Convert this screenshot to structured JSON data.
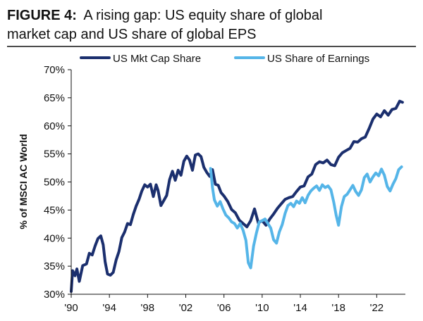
{
  "chart_data": {
    "type": "line",
    "title": "FIGURE 4: A rising gap: US equity share of global market cap and US share of global EPS",
    "title_bold": "FIGURE 4:",
    "title_line1": "A rising gap: US equity share of global",
    "title_line2": "market cap and US share of global EPS",
    "ylabel": "% of MSCI AC World",
    "xlabel": "",
    "ylim": [
      30,
      70
    ],
    "xlim": [
      1990,
      2025
    ],
    "y_ticks": [
      30,
      35,
      40,
      45,
      50,
      55,
      60,
      65,
      70
    ],
    "y_tick_labels": [
      "30%",
      "35%",
      "40%",
      "45%",
      "50%",
      "55%",
      "60%",
      "65%",
      "70%"
    ],
    "x_ticks": [
      1990,
      1994,
      1998,
      2002,
      2006,
      2010,
      2014,
      2018,
      2022
    ],
    "x_tick_labels": [
      "'90",
      "'94",
      "'98",
      "'02",
      "'06",
      "'10",
      "'14",
      "'18",
      "'22"
    ],
    "grid": false,
    "legend_position": "top",
    "series": [
      {
        "name": "US Mkt Cap Share",
        "color": "#1b2f6e",
        "points": [
          [
            1990.0,
            30.5
          ],
          [
            1990.15,
            34.2
          ],
          [
            1990.4,
            33.3
          ],
          [
            1990.6,
            34.5
          ],
          [
            1990.85,
            32.3
          ],
          [
            1991.2,
            35.1
          ],
          [
            1991.6,
            35.4
          ],
          [
            1991.9,
            37.3
          ],
          [
            1992.2,
            37.0
          ],
          [
            1992.5,
            38.6
          ],
          [
            1992.8,
            39.9
          ],
          [
            1993.1,
            40.4
          ],
          [
            1993.35,
            38.8
          ],
          [
            1993.55,
            35.8
          ],
          [
            1993.8,
            33.6
          ],
          [
            1994.1,
            33.4
          ],
          [
            1994.4,
            33.9
          ],
          [
            1994.7,
            36.1
          ],
          [
            1995.0,
            37.6
          ],
          [
            1995.3,
            40.1
          ],
          [
            1995.6,
            41.1
          ],
          [
            1995.9,
            42.6
          ],
          [
            1996.2,
            42.4
          ],
          [
            1996.5,
            44.2
          ],
          [
            1996.8,
            45.7
          ],
          [
            1997.1,
            46.9
          ],
          [
            1997.4,
            48.4
          ],
          [
            1997.7,
            49.5
          ],
          [
            1998.0,
            49.1
          ],
          [
            1998.3,
            49.6
          ],
          [
            1998.6,
            47.4
          ],
          [
            1998.9,
            49.5
          ],
          [
            1999.1,
            48.5
          ],
          [
            1999.4,
            45.8
          ],
          [
            1999.7,
            46.7
          ],
          [
            2000.0,
            47.6
          ],
          [
            2000.3,
            50.4
          ],
          [
            2000.6,
            51.9
          ],
          [
            2000.9,
            50.3
          ],
          [
            2001.2,
            52.1
          ],
          [
            2001.5,
            51.2
          ],
          [
            2001.8,
            53.7
          ],
          [
            2002.1,
            54.6
          ],
          [
            2002.4,
            53.9
          ],
          [
            2002.7,
            52.1
          ],
          [
            2003.0,
            54.8
          ],
          [
            2003.3,
            55.0
          ],
          [
            2003.6,
            54.5
          ],
          [
            2003.9,
            52.6
          ],
          [
            2004.2,
            51.7
          ],
          [
            2004.5,
            51.0
          ],
          [
            2004.8,
            52.2
          ],
          [
            2005.1,
            49.6
          ],
          [
            2005.4,
            49.4
          ],
          [
            2005.7,
            48.1
          ],
          [
            2006.0,
            47.5
          ],
          [
            2006.4,
            46.5
          ],
          [
            2006.8,
            45.1
          ],
          [
            2007.2,
            44.5
          ],
          [
            2007.6,
            43.2
          ],
          [
            2008.0,
            42.6
          ],
          [
            2008.4,
            42.0
          ],
          [
            2008.8,
            43.1
          ],
          [
            2009.2,
            45.2
          ],
          [
            2009.6,
            42.7
          ],
          [
            2010.0,
            43.1
          ],
          [
            2010.4,
            42.3
          ],
          [
            2010.8,
            43.4
          ],
          [
            2011.2,
            44.3
          ],
          [
            2011.6,
            45.3
          ],
          [
            2012.0,
            46.1
          ],
          [
            2012.4,
            46.9
          ],
          [
            2012.8,
            47.2
          ],
          [
            2013.2,
            47.4
          ],
          [
            2013.6,
            48.3
          ],
          [
            2014.0,
            49.1
          ],
          [
            2014.4,
            49.3
          ],
          [
            2014.8,
            50.9
          ],
          [
            2015.2,
            51.4
          ],
          [
            2015.6,
            53.1
          ],
          [
            2016.0,
            53.6
          ],
          [
            2016.4,
            53.4
          ],
          [
            2016.8,
            53.9
          ],
          [
            2017.2,
            53.1
          ],
          [
            2017.6,
            52.9
          ],
          [
            2018.0,
            54.4
          ],
          [
            2018.4,
            55.2
          ],
          [
            2018.8,
            55.6
          ],
          [
            2019.2,
            56.0
          ],
          [
            2019.6,
            57.2
          ],
          [
            2020.0,
            57.1
          ],
          [
            2020.4,
            57.7
          ],
          [
            2020.8,
            58.0
          ],
          [
            2021.2,
            59.5
          ],
          [
            2021.6,
            61.2
          ],
          [
            2022.0,
            62.1
          ],
          [
            2022.4,
            61.6
          ],
          [
            2022.8,
            62.7
          ],
          [
            2023.2,
            61.9
          ],
          [
            2023.6,
            62.9
          ],
          [
            2024.0,
            63.1
          ],
          [
            2024.4,
            64.4
          ],
          [
            2024.7,
            64.2
          ]
        ]
      },
      {
        "name": "US Share of Earnings",
        "color": "#55b5e8",
        "points": [
          [
            2004.6,
            52.4
          ],
          [
            2004.8,
            49.0
          ],
          [
            2005.0,
            46.8
          ],
          [
            2005.3,
            45.7
          ],
          [
            2005.6,
            46.5
          ],
          [
            2005.9,
            45.2
          ],
          [
            2006.2,
            44.1
          ],
          [
            2006.5,
            43.6
          ],
          [
            2006.8,
            42.9
          ],
          [
            2007.1,
            42.6
          ],
          [
            2007.4,
            41.8
          ],
          [
            2007.7,
            42.6
          ],
          [
            2008.0,
            41.4
          ],
          [
            2008.3,
            39.6
          ],
          [
            2008.55,
            35.6
          ],
          [
            2008.8,
            34.7
          ],
          [
            2009.1,
            38.6
          ],
          [
            2009.4,
            40.9
          ],
          [
            2009.7,
            42.9
          ],
          [
            2010.0,
            43.1
          ],
          [
            2010.3,
            43.4
          ],
          [
            2010.6,
            42.6
          ],
          [
            2010.9,
            41.8
          ],
          [
            2011.2,
            39.7
          ],
          [
            2011.5,
            39.1
          ],
          [
            2011.8,
            41.1
          ],
          [
            2012.1,
            42.4
          ],
          [
            2012.4,
            44.4
          ],
          [
            2012.7,
            45.8
          ],
          [
            2013.0,
            46.2
          ],
          [
            2013.3,
            45.6
          ],
          [
            2013.6,
            46.6
          ],
          [
            2013.9,
            46.2
          ],
          [
            2014.2,
            47.2
          ],
          [
            2014.5,
            46.3
          ],
          [
            2014.8,
            47.6
          ],
          [
            2015.1,
            48.4
          ],
          [
            2015.4,
            48.9
          ],
          [
            2015.7,
            49.3
          ],
          [
            2016.0,
            48.5
          ],
          [
            2016.3,
            49.5
          ],
          [
            2016.6,
            49.0
          ],
          [
            2016.9,
            49.3
          ],
          [
            2017.2,
            48.6
          ],
          [
            2017.5,
            46.4
          ],
          [
            2017.75,
            44.1
          ],
          [
            2018.0,
            42.3
          ],
          [
            2018.3,
            45.6
          ],
          [
            2018.6,
            47.4
          ],
          [
            2018.9,
            47.8
          ],
          [
            2019.2,
            48.6
          ],
          [
            2019.5,
            49.4
          ],
          [
            2019.8,
            48.3
          ],
          [
            2020.1,
            47.6
          ],
          [
            2020.4,
            48.6
          ],
          [
            2020.7,
            50.8
          ],
          [
            2021.0,
            51.4
          ],
          [
            2021.3,
            50.0
          ],
          [
            2021.6,
            50.9
          ],
          [
            2021.9,
            51.6
          ],
          [
            2022.2,
            51.1
          ],
          [
            2022.5,
            52.3
          ],
          [
            2022.8,
            51.2
          ],
          [
            2023.1,
            49.2
          ],
          [
            2023.4,
            48.4
          ],
          [
            2023.7,
            49.6
          ],
          [
            2024.0,
            50.6
          ],
          [
            2024.3,
            52.2
          ],
          [
            2024.6,
            52.7
          ]
        ]
      }
    ]
  }
}
